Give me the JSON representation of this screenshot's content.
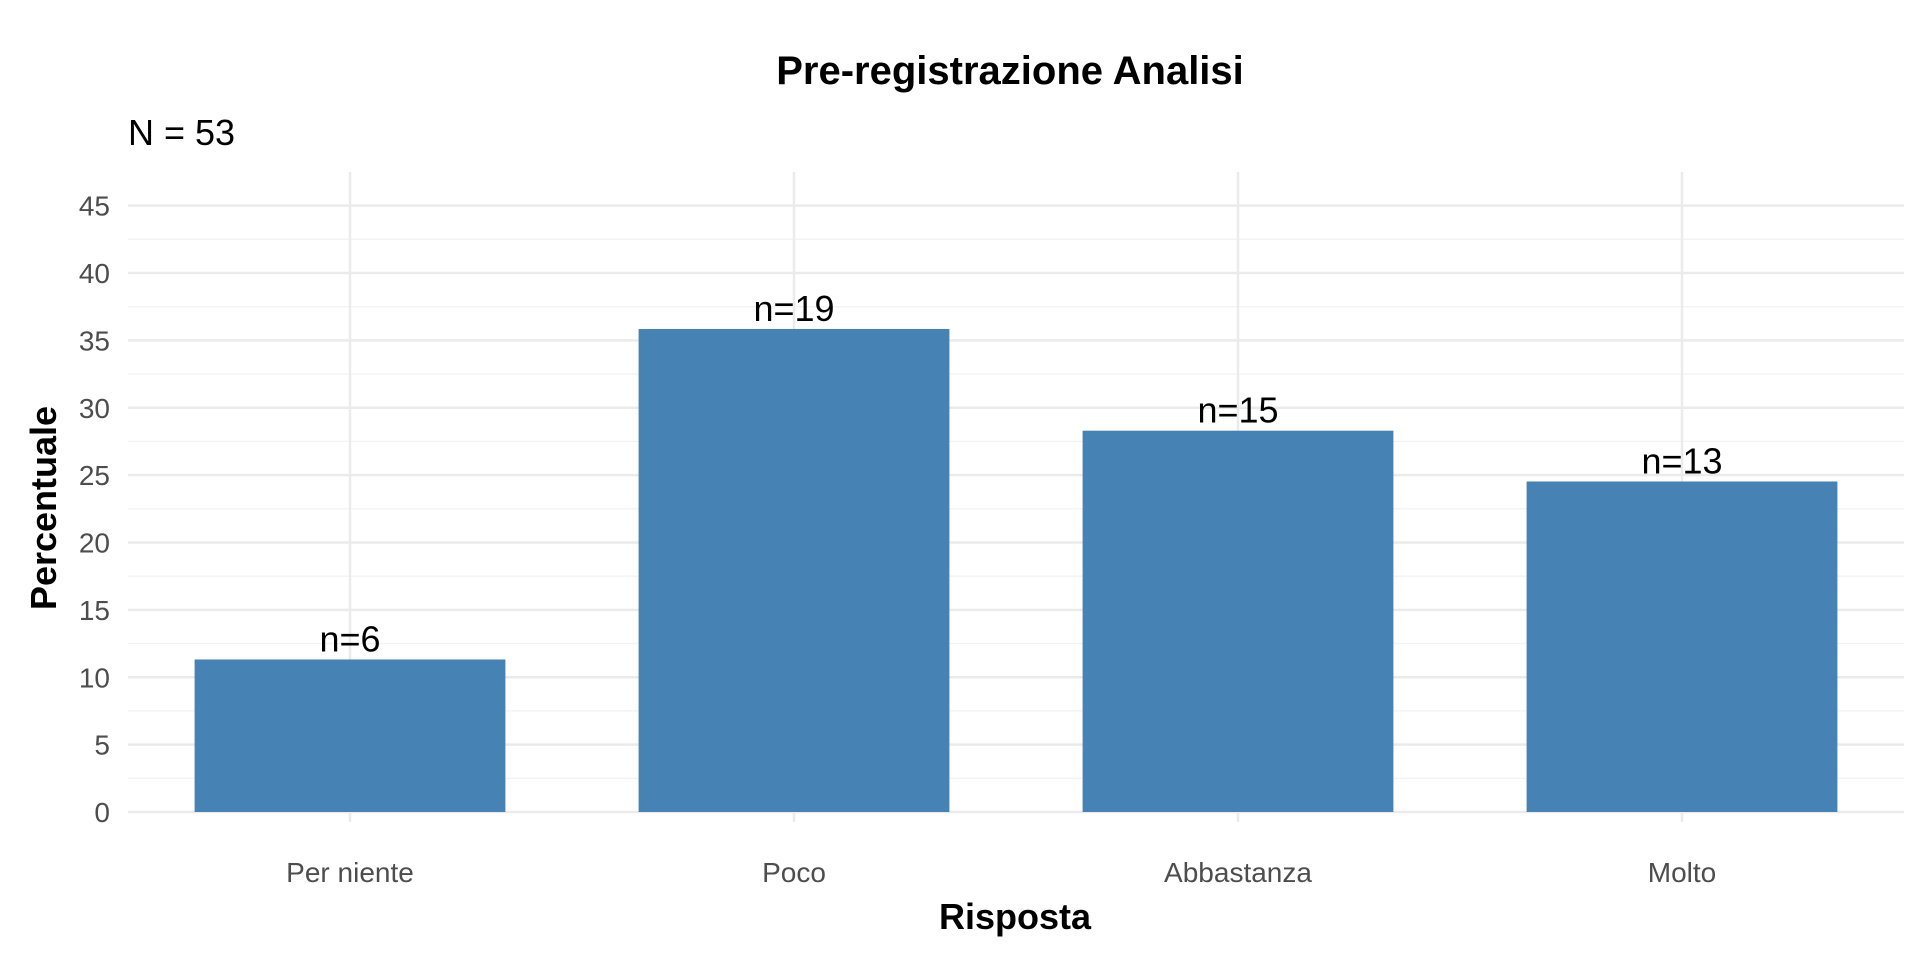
{
  "chart_data": {
    "type": "bar",
    "title": "Pre-registrazione Analisi",
    "subtitle": "N = 53",
    "xlabel": "Risposta",
    "ylabel": "Percentuale",
    "categories": [
      "Per niente",
      "Poco",
      "Abbastanza",
      "Molto"
    ],
    "values": [
      11.32,
      35.85,
      28.3,
      24.53
    ],
    "labels": [
      "n=6",
      "n=19",
      "n=15",
      "n=13"
    ],
    "ylim": [
      0,
      47.5
    ],
    "yticks": [
      0,
      5,
      10,
      15,
      20,
      25,
      30,
      35,
      40,
      45
    ],
    "grid": true,
    "legend": "none",
    "bar_color": "#4682b4"
  }
}
